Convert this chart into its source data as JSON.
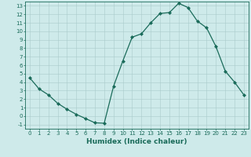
{
  "x": [
    0,
    1,
    2,
    3,
    4,
    5,
    6,
    7,
    8,
    9,
    10,
    11,
    12,
    13,
    14,
    15,
    16,
    17,
    18,
    19,
    20,
    21,
    22,
    23
  ],
  "y": [
    4.5,
    3.2,
    2.5,
    1.5,
    0.8,
    0.2,
    -0.3,
    -0.8,
    -0.85,
    3.5,
    6.5,
    9.3,
    9.7,
    11.0,
    12.1,
    12.2,
    13.3,
    12.8,
    11.2,
    10.4,
    8.2,
    5.3,
    4.0,
    2.5
  ],
  "line_color": "#1a6b5a",
  "marker": "D",
  "markersize": 2.0,
  "linewidth": 0.9,
  "xlabel": "Humidex (Indice chaleur)",
  "xlabel_fontsize": 6.5,
  "tick_fontsize": 5.0,
  "bg_color": "#ceeaea",
  "grid_color": "#aacaca",
  "tick_color": "#1a6b5a",
  "spine_color": "#1a6b5a",
  "xlim": [
    -0.5,
    23.5
  ],
  "ylim": [
    -1.5,
    13.5
  ],
  "xticks": [
    0,
    1,
    2,
    3,
    4,
    5,
    6,
    7,
    8,
    9,
    10,
    11,
    12,
    13,
    14,
    15,
    16,
    17,
    18,
    19,
    20,
    21,
    22,
    23
  ],
  "yticks": [
    -1,
    0,
    1,
    2,
    3,
    4,
    5,
    6,
    7,
    8,
    9,
    10,
    11,
    12,
    13
  ]
}
